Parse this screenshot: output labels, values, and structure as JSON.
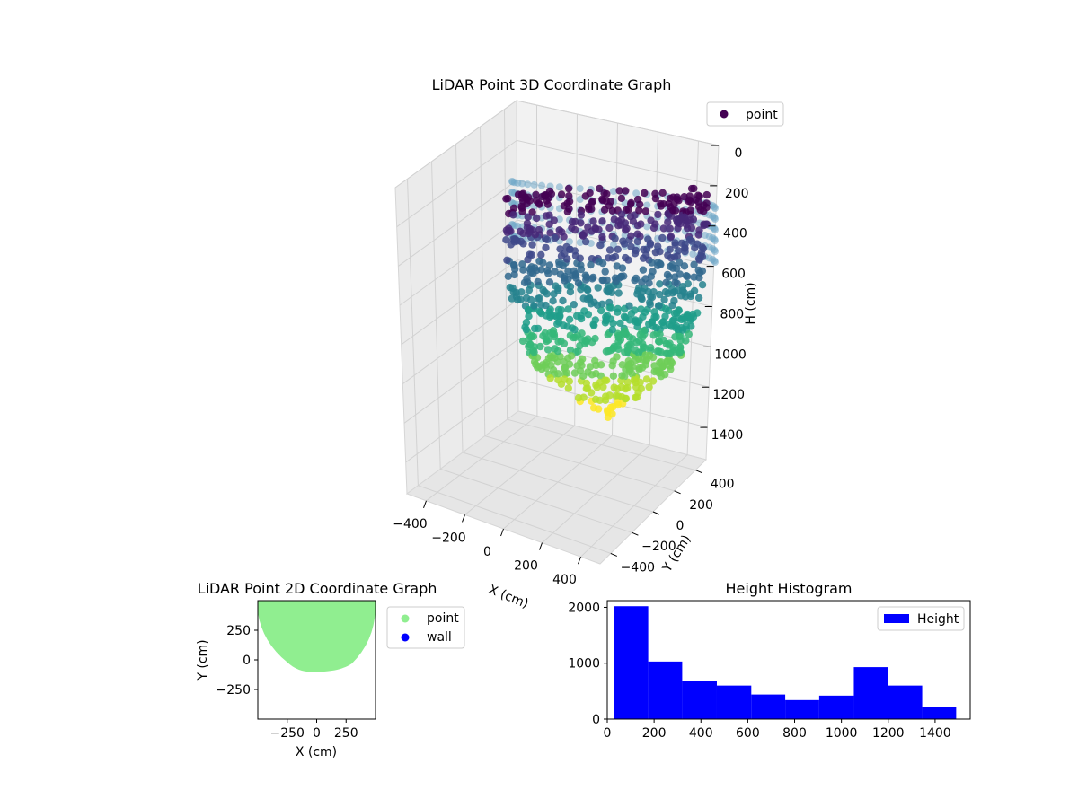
{
  "chart_data": [
    {
      "type": "scatter",
      "projection": "3d",
      "title": "LiDAR Point 3D Coordinate Graph",
      "xlabel": "X (cm)",
      "ylabel": "Y (cm)",
      "zlabel": "H (cm)",
      "x_ticks": [
        -400,
        -200,
        0,
        200,
        400
      ],
      "y_ticks": [
        -400,
        -200,
        0,
        200,
        400
      ],
      "z_ticks": [
        0,
        200,
        400,
        600,
        800,
        1000,
        1200,
        1400
      ],
      "z_inverted": true,
      "colormap": "viridis",
      "legend": [
        "point"
      ],
      "legend_position": "top-right",
      "grid": true
    },
    {
      "type": "scatter",
      "title": "LiDAR Point 2D Coordinate Graph",
      "xlabel": "X (cm)",
      "ylabel": "Y (cm)",
      "x_ticks": [
        -250,
        0,
        250
      ],
      "y_ticks": [
        250,
        0,
        -250
      ],
      "xlim": [
        -500,
        500
      ],
      "ylim": [
        -500,
        500
      ],
      "series": [
        {
          "name": "point",
          "color": "#90ee90",
          "shape": "half-disc",
          "y_min": -100
        },
        {
          "name": "wall",
          "color": "#0000ff"
        }
      ],
      "legend_position": "outside-right"
    },
    {
      "type": "bar",
      "title": "Height Histogram",
      "bins": [
        [
          30,
          175
        ],
        [
          175,
          320
        ],
        [
          320,
          468
        ],
        [
          468,
          615
        ],
        [
          615,
          760
        ],
        [
          760,
          905
        ],
        [
          905,
          1053
        ],
        [
          1053,
          1200
        ],
        [
          1200,
          1345
        ],
        [
          1345,
          1490
        ]
      ],
      "values": [
        2020,
        1030,
        680,
        600,
        440,
        340,
        420,
        930,
        600,
        220
      ],
      "xlim": [
        0,
        1550
      ],
      "ylim": [
        0,
        2120
      ],
      "x_ticks": [
        0,
        200,
        400,
        600,
        800,
        1000,
        1200,
        1400
      ],
      "y_ticks": [
        0,
        1000,
        2000
      ],
      "bar_color": "#0000ff",
      "legend": [
        "Height"
      ],
      "legend_position": "top-right"
    }
  ]
}
